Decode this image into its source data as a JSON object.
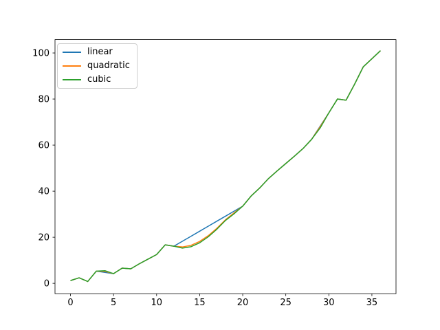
{
  "chart_data": {
    "type": "line",
    "title": "",
    "xlabel": "",
    "ylabel": "",
    "grid": false,
    "x": [
      0,
      1,
      2,
      3,
      4,
      5,
      6,
      7,
      8,
      9,
      10,
      11,
      12,
      13,
      14,
      15,
      16,
      17,
      18,
      19,
      20,
      21,
      22,
      23,
      24,
      25,
      26,
      27,
      28,
      29,
      30,
      31,
      32,
      33,
      34,
      35,
      36
    ],
    "series": [
      {
        "name": "linear",
        "color": "#1f77b4",
        "values": [
          1.2,
          2.4,
          0.8,
          5.3,
          4.75,
          4.2,
          6.6,
          6.3,
          8.5,
          10.5,
          12.5,
          16.7,
          16.1,
          18.28,
          20.45,
          22.63,
          24.8,
          26.98,
          29.15,
          31.33,
          33.5,
          38.0,
          41.5,
          45.5,
          48.8,
          52.0,
          55.2,
          58.5,
          62.5,
          68.25,
          74.0,
          80.0,
          79.5,
          86.5,
          94.0,
          97.5,
          101.0
        ]
      },
      {
        "name": "quadratic",
        "color": "#ff7f0e",
        "values": [
          1.2,
          2.4,
          0.8,
          5.3,
          5.2,
          4.2,
          6.6,
          6.3,
          8.5,
          10.5,
          12.5,
          16.7,
          16.1,
          15.8,
          16.5,
          18.2,
          20.7,
          23.9,
          27.6,
          30.6,
          33.5,
          38.0,
          41.5,
          45.5,
          48.8,
          52.0,
          55.2,
          58.5,
          62.5,
          68.0,
          74.0,
          80.0,
          79.5,
          86.5,
          94.0,
          97.5,
          101.0
        ]
      },
      {
        "name": "cubic",
        "color": "#2ca02c",
        "values": [
          1.2,
          2.4,
          0.8,
          5.3,
          5.5,
          4.2,
          6.6,
          6.3,
          8.5,
          10.5,
          12.5,
          16.7,
          16.1,
          15.3,
          15.9,
          17.6,
          20.2,
          23.5,
          27.3,
          30.2,
          33.5,
          38.0,
          41.5,
          45.5,
          48.8,
          52.0,
          55.2,
          58.5,
          62.5,
          67.5,
          74.0,
          80.0,
          79.5,
          86.5,
          94.0,
          97.5,
          101.0
        ]
      }
    ],
    "xlim": [
      -1.8,
      37.8
    ],
    "ylim": [
      -4.5,
      105.8
    ],
    "xticks": [
      0,
      5,
      10,
      15,
      20,
      25,
      30,
      35
    ],
    "yticks": [
      0,
      20,
      40,
      60,
      80,
      100
    ],
    "legend": {
      "position": "upper left",
      "entries": [
        "linear",
        "quadratic",
        "cubic"
      ]
    }
  }
}
